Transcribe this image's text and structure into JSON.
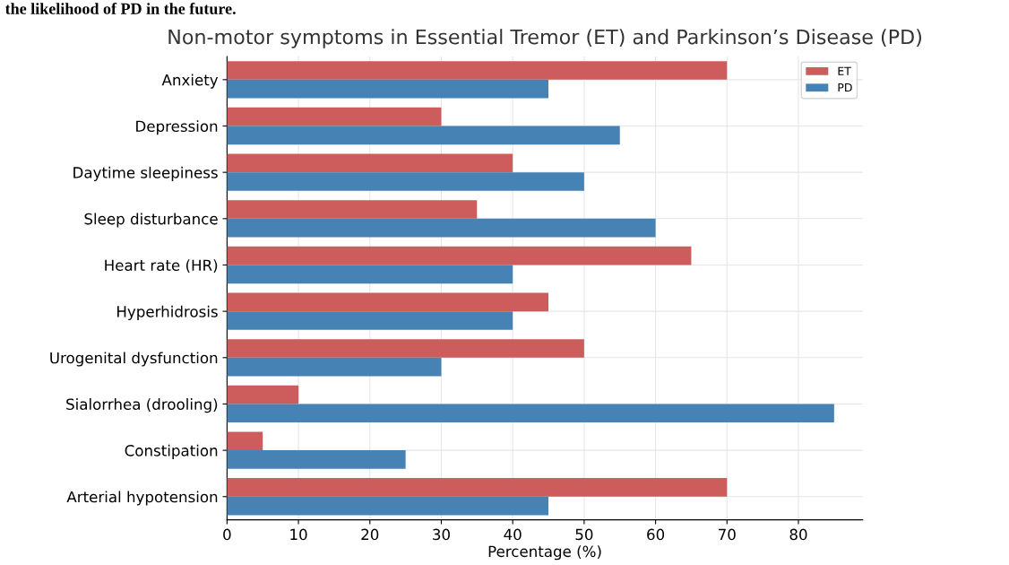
{
  "chart_data": {
    "type": "bar",
    "orientation": "horizontal",
    "title": "Non-motor symptoms in Essential Tremor (ET) and Parkinson’s Disease (PD)",
    "xlabel": "Percentage (%)",
    "annotations": [
      "the likelihood of PD in the future."
    ],
    "categories": [
      "Anxiety",
      "Depression",
      "Daytime sleepiness",
      "Sleep disturbance",
      "Heart rate (HR)",
      "Hyperhidrosis",
      "Urogenital dysfunction",
      "Sialorrhea (drooling)",
      "Constipation",
      "Arterial hypotension"
    ],
    "series": [
      {
        "name": "ET",
        "color": "#cd5c5c",
        "values": [
          70,
          30,
          40,
          35,
          65,
          45,
          50,
          10,
          5,
          70
        ]
      },
      {
        "name": "PD",
        "color": "#4682b4",
        "values": [
          45,
          55,
          50,
          60,
          40,
          40,
          30,
          85,
          25,
          45
        ]
      }
    ],
    "xlim": [
      0,
      89
    ],
    "xticks": [
      0,
      10,
      20,
      30,
      40,
      50,
      60,
      70,
      80
    ],
    "grid": true,
    "legend": "top right"
  }
}
